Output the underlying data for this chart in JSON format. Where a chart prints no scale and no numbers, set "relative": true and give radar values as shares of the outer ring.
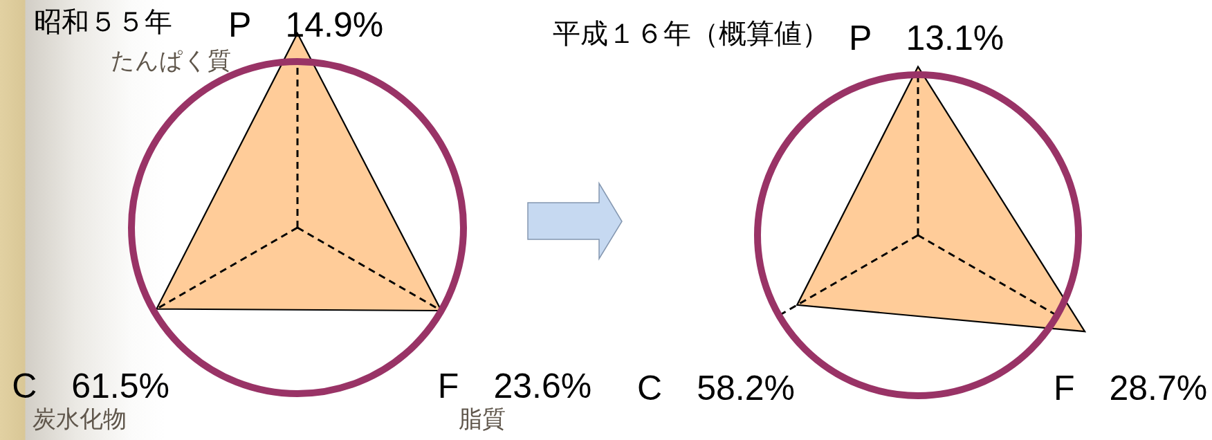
{
  "chart_data": [
    {
      "type": "radar",
      "title": "昭和５５年",
      "categories": [
        "P　14.9%",
        "F　23.6%",
        "C　61.5%"
      ],
      "values": [
        1.17,
        1.0,
        0.98
      ],
      "relative": true,
      "color": "#ffcc99",
      "grid": true,
      "annotations": [
        "たんぱく質",
        "脂質",
        "炭水化物"
      ]
    },
    {
      "type": "radar",
      "title": "平成１６年（概算値）",
      "categories": [
        "P　13.1%",
        "F　28.7%",
        "C　58.2%"
      ],
      "values": [
        1.05,
        1.2,
        0.87
      ],
      "relative": true,
      "color": "#ffcc99",
      "grid": true
    }
  ]
}
